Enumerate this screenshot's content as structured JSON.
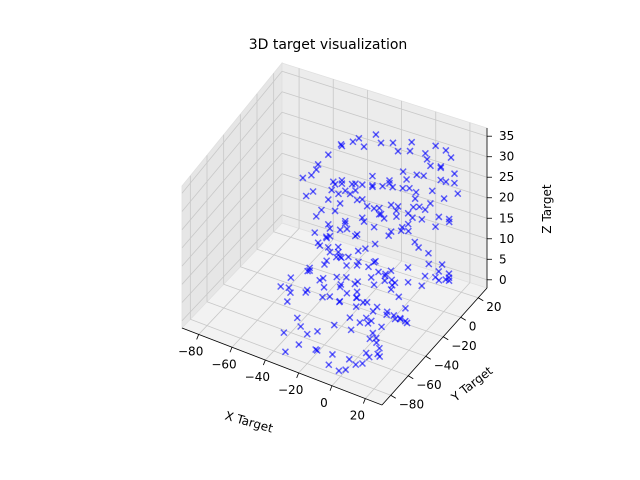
{
  "chart_data": {
    "type": "scatter3d",
    "title": "3D target visualization",
    "xlabel": "X Target",
    "ylabel": "Y Target",
    "zlabel": "Z Target",
    "xlim": [
      -90,
      30
    ],
    "ylim": [
      -90,
      30
    ],
    "zlim": [
      -2,
      37
    ],
    "x_ticks": [
      -80,
      -60,
      -40,
      -20,
      0,
      20
    ],
    "y_ticks": [
      -80,
      -60,
      -40,
      -20,
      0,
      20
    ],
    "z_ticks": [
      0,
      5,
      10,
      15,
      20,
      25,
      30,
      35
    ],
    "marker": "x",
    "color": "#0000ff",
    "alpha": 0.6,
    "points": [
      [
        -38,
        -5,
        33
      ],
      [
        -32,
        -3,
        34
      ],
      [
        -28,
        2,
        32
      ],
      [
        -20,
        6,
        33
      ],
      [
        -12,
        10,
        31
      ],
      [
        -6,
        14,
        33
      ],
      [
        0,
        18,
        30
      ],
      [
        5,
        20,
        32
      ],
      [
        10,
        22,
        31
      ],
      [
        12,
        24,
        29
      ],
      [
        8,
        20,
        27
      ],
      [
        4,
        16,
        28
      ],
      [
        -2,
        12,
        26
      ],
      [
        -8,
        8,
        27
      ],
      [
        -14,
        4,
        25
      ],
      [
        -22,
        0,
        26
      ],
      [
        -30,
        -4,
        24
      ],
      [
        -36,
        -8,
        25
      ],
      [
        -40,
        -12,
        23
      ],
      [
        -34,
        -14,
        21
      ],
      [
        -26,
        -10,
        22
      ],
      [
        -18,
        -6,
        20
      ],
      [
        -10,
        -2,
        21
      ],
      [
        -2,
        2,
        19
      ],
      [
        6,
        6,
        20
      ],
      [
        12,
        10,
        18
      ],
      [
        16,
        14,
        17
      ],
      [
        14,
        18,
        15
      ],
      [
        8,
        14,
        14
      ],
      [
        2,
        10,
        16
      ],
      [
        -4,
        6,
        15
      ],
      [
        -12,
        2,
        13
      ],
      [
        -20,
        -2,
        14
      ],
      [
        -28,
        -6,
        12
      ],
      [
        -36,
        -10,
        13
      ],
      [
        -42,
        -14,
        11
      ],
      [
        -38,
        -18,
        9
      ],
      [
        -30,
        -22,
        10
      ],
      [
        -22,
        -18,
        8
      ],
      [
        -14,
        -14,
        9
      ],
      [
        -6,
        -10,
        7
      ],
      [
        2,
        -6,
        8
      ],
      [
        10,
        -2,
        6
      ],
      [
        16,
        2,
        7
      ],
      [
        20,
        6,
        5
      ],
      [
        18,
        10,
        3
      ],
      [
        12,
        6,
        4
      ],
      [
        6,
        2,
        2
      ],
      [
        0,
        -2,
        3
      ],
      [
        -8,
        -6,
        1
      ],
      [
        -16,
        -10,
        2
      ],
      [
        -24,
        -14,
        0
      ],
      [
        -32,
        -18,
        1
      ],
      [
        -40,
        -22,
        3
      ],
      [
        -46,
        -26,
        5
      ],
      [
        -44,
        -30,
        7
      ],
      [
        -36,
        -34,
        6
      ],
      [
        -28,
        -38,
        4
      ],
      [
        -20,
        -42,
        5
      ],
      [
        -12,
        -46,
        3
      ],
      [
        -4,
        -50,
        4
      ],
      [
        4,
        -54,
        2
      ],
      [
        10,
        -58,
        3
      ],
      [
        14,
        -62,
        1
      ],
      [
        8,
        -66,
        2
      ],
      [
        0,
        -70,
        0
      ],
      [
        -8,
        -74,
        1
      ],
      [
        -16,
        -78,
        2
      ],
      [
        -24,
        -82,
        3
      ],
      [
        -30,
        -86,
        1
      ],
      [
        -34,
        -80,
        4
      ],
      [
        -26,
        -76,
        6
      ],
      [
        -18,
        -72,
        5
      ],
      [
        -10,
        -68,
        7
      ],
      [
        -2,
        -64,
        6
      ],
      [
        6,
        -60,
        8
      ],
      [
        12,
        -56,
        7
      ],
      [
        18,
        -52,
        9
      ],
      [
        22,
        -48,
        8
      ],
      [
        20,
        -44,
        10
      ],
      [
        14,
        -40,
        11
      ],
      [
        8,
        -36,
        12
      ],
      [
        2,
        -32,
        13
      ],
      [
        -6,
        -28,
        14
      ],
      [
        -14,
        -24,
        15
      ],
      [
        -22,
        -20,
        16
      ],
      [
        -30,
        -16,
        17
      ],
      [
        -38,
        -12,
        18
      ],
      [
        -44,
        -8,
        19
      ],
      [
        -40,
        -4,
        20
      ],
      [
        -32,
        0,
        21
      ],
      [
        -24,
        4,
        22
      ],
      [
        -16,
        8,
        23
      ],
      [
        -8,
        12,
        24
      ],
      [
        0,
        16,
        25
      ],
      [
        8,
        20,
        24
      ],
      [
        14,
        24,
        23
      ],
      [
        18,
        20,
        22
      ],
      [
        12,
        16,
        21
      ],
      [
        6,
        12,
        20
      ],
      [
        -2,
        8,
        19
      ],
      [
        -10,
        4,
        18
      ],
      [
        -18,
        0,
        17
      ],
      [
        -26,
        -4,
        16
      ],
      [
        -34,
        -8,
        15
      ],
      [
        -42,
        -12,
        14
      ],
      [
        -48,
        -16,
        12
      ],
      [
        -44,
        -20,
        11
      ],
      [
        -36,
        -24,
        12
      ],
      [
        -28,
        -28,
        13
      ],
      [
        -20,
        -32,
        14
      ],
      [
        -12,
        -36,
        15
      ],
      [
        -4,
        -40,
        16
      ],
      [
        4,
        -44,
        17
      ],
      [
        10,
        -48,
        18
      ],
      [
        16,
        -52,
        19
      ],
      [
        20,
        -56,
        20
      ],
      [
        16,
        -60,
        21
      ],
      [
        10,
        -64,
        22
      ],
      [
        4,
        -68,
        21
      ],
      [
        -4,
        -72,
        20
      ],
      [
        -12,
        -76,
        19
      ],
      [
        -20,
        -80,
        18
      ],
      [
        -28,
        -84,
        17
      ],
      [
        -32,
        -78,
        16
      ],
      [
        -24,
        -74,
        15
      ],
      [
        -16,
        -70,
        14
      ],
      [
        -8,
        -66,
        13
      ],
      [
        0,
        -62,
        12
      ],
      [
        8,
        -58,
        11
      ],
      [
        14,
        -54,
        10
      ],
      [
        20,
        -50,
        9
      ],
      [
        22,
        -46,
        7
      ],
      [
        16,
        -42,
        6
      ],
      [
        10,
        -38,
        5
      ],
      [
        4,
        -34,
        4
      ],
      [
        -4,
        -30,
        3
      ],
      [
        -12,
        -26,
        2
      ],
      [
        -20,
        -22,
        1
      ],
      [
        -28,
        -18,
        0
      ],
      [
        -36,
        -14,
        2
      ],
      [
        -44,
        -10,
        4
      ],
      [
        -50,
        -6,
        6
      ],
      [
        -46,
        -2,
        8
      ],
      [
        -38,
        2,
        10
      ],
      [
        -30,
        6,
        12
      ],
      [
        -22,
        10,
        14
      ],
      [
        -14,
        14,
        16
      ],
      [
        -6,
        18,
        18
      ],
      [
        2,
        22,
        20
      ],
      [
        8,
        26,
        22
      ],
      [
        12,
        28,
        24
      ],
      [
        6,
        24,
        26
      ],
      [
        0,
        20,
        28
      ],
      [
        -8,
        16,
        30
      ],
      [
        -16,
        12,
        32
      ],
      [
        -24,
        8,
        34
      ],
      [
        -32,
        4,
        33
      ],
      [
        -40,
        0,
        31
      ],
      [
        -46,
        -4,
        29
      ],
      [
        -50,
        -8,
        27
      ],
      [
        -52,
        -12,
        25
      ],
      [
        -48,
        -18,
        23
      ],
      [
        -40,
        -24,
        21
      ],
      [
        -32,
        -30,
        19
      ],
      [
        -24,
        -36,
        17
      ],
      [
        -16,
        -42,
        15
      ],
      [
        -8,
        -48,
        13
      ],
      [
        0,
        -54,
        11
      ],
      [
        8,
        -60,
        9
      ],
      [
        14,
        -66,
        7
      ],
      [
        18,
        -72,
        5
      ],
      [
        12,
        -78,
        3
      ],
      [
        4,
        -82,
        1
      ],
      [
        -4,
        -86,
        2
      ],
      [
        -12,
        -84,
        4
      ],
      [
        -20,
        -80,
        6
      ],
      [
        -28,
        -76,
        8
      ],
      [
        -36,
        -72,
        10
      ],
      [
        -42,
        -68,
        12
      ],
      [
        -38,
        -64,
        14
      ],
      [
        -30,
        -60,
        16
      ],
      [
        -22,
        -56,
        18
      ],
      [
        -14,
        -52,
        20
      ],
      [
        -6,
        -48,
        22
      ],
      [
        2,
        -44,
        24
      ],
      [
        8,
        -40,
        26
      ],
      [
        14,
        -36,
        28
      ],
      [
        18,
        -32,
        30
      ],
      [
        20,
        -28,
        32
      ],
      [
        16,
        -24,
        34
      ],
      [
        10,
        -20,
        33
      ],
      [
        4,
        -16,
        31
      ],
      [
        -4,
        -12,
        29
      ],
      [
        -12,
        -8,
        27
      ],
      [
        -20,
        -4,
        25
      ],
      [
        -28,
        0,
        23
      ],
      [
        -36,
        4,
        21
      ],
      [
        -44,
        8,
        19
      ],
      [
        -50,
        12,
        17
      ],
      [
        -46,
        16,
        15
      ],
      [
        -38,
        20,
        13
      ],
      [
        -30,
        24,
        11
      ],
      [
        -22,
        28,
        9
      ],
      [
        -14,
        26,
        7
      ],
      [
        -6,
        22,
        5
      ],
      [
        2,
        18,
        3
      ],
      [
        10,
        14,
        1
      ],
      [
        16,
        10,
        3
      ],
      [
        20,
        6,
        6
      ],
      [
        18,
        2,
        9
      ],
      [
        12,
        -2,
        12
      ],
      [
        6,
        -6,
        15
      ],
      [
        0,
        -10,
        18
      ],
      [
        -8,
        -14,
        21
      ],
      [
        -16,
        -18,
        24
      ],
      [
        -24,
        -22,
        27
      ],
      [
        -32,
        -26,
        30
      ],
      [
        -40,
        -30,
        33
      ],
      [
        -46,
        -34,
        31
      ],
      [
        -42,
        -38,
        28
      ],
      [
        -34,
        -42,
        25
      ],
      [
        -26,
        -46,
        22
      ],
      [
        -18,
        -50,
        19
      ],
      [
        -10,
        -54,
        16
      ],
      [
        -2,
        -58,
        13
      ],
      [
        6,
        -62,
        10
      ],
      [
        12,
        -66,
        8
      ],
      [
        18,
        -70,
        6
      ],
      [
        14,
        -74,
        4
      ],
      [
        8,
        -78,
        2
      ],
      [
        0,
        -82,
        0
      ]
    ]
  }
}
